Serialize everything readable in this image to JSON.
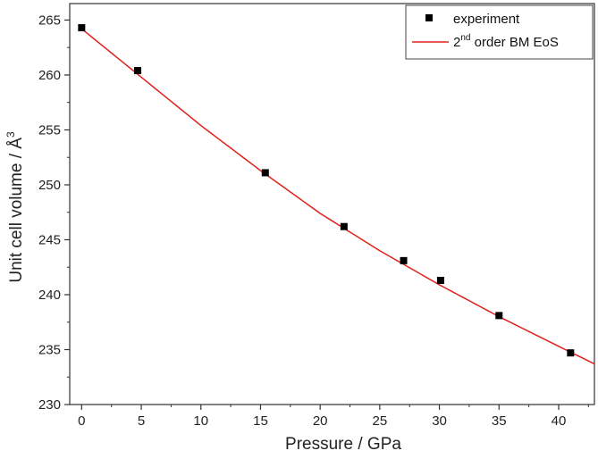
{
  "chart_data": {
    "type": "scatter",
    "xlabel": "Pressure / GPa",
    "ylabel_main": "Unit cell volume / Å",
    "ylabel_sup": "3",
    "xlim": [
      -1,
      43
    ],
    "ylim": [
      230,
      266.5
    ],
    "xticks": [
      0,
      5,
      10,
      15,
      20,
      25,
      30,
      35,
      40
    ],
    "yticks": [
      230,
      235,
      240,
      245,
      250,
      255,
      260,
      265
    ],
    "grid": false,
    "legend_position": "top-right",
    "series": [
      {
        "name": "experiment",
        "kind": "scatter",
        "marker": "square",
        "color": "#000000",
        "x": [
          0,
          4.7,
          15.4,
          22.0,
          27.0,
          30.1,
          35.0,
          41.0
        ],
        "y": [
          264.3,
          260.4,
          251.1,
          246.2,
          243.1,
          241.3,
          238.1,
          234.7
        ]
      },
      {
        "name_prefix": "2",
        "name_sup": "nd",
        "name_suffix": " order BM EoS",
        "kind": "line",
        "color": "#e0201b",
        "x": [
          0,
          5,
          10,
          15,
          20,
          25,
          30,
          35,
          40,
          43
        ],
        "y": [
          264.2,
          259.8,
          255.4,
          251.3,
          247.4,
          244.0,
          240.9,
          238.0,
          235.3,
          233.7
        ]
      }
    ]
  }
}
